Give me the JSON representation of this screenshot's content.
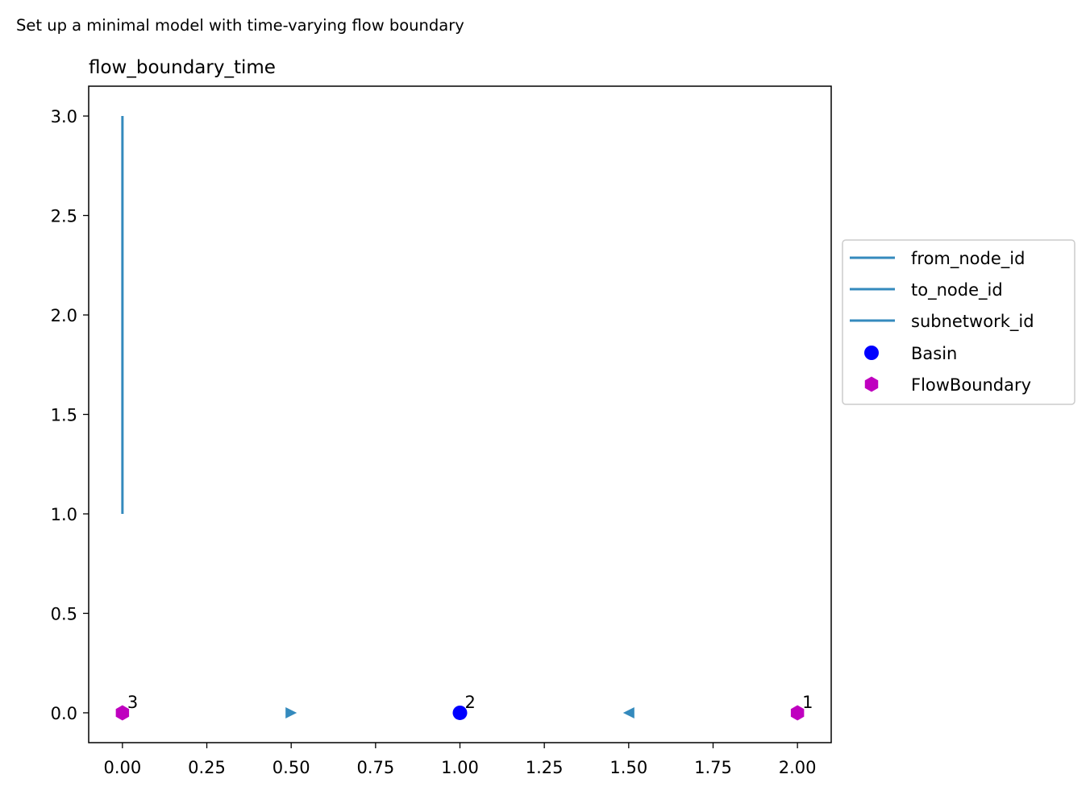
{
  "figure": {
    "suptitle": "Set up a minimal model with time-varying flow boundary"
  },
  "chart_data": {
    "type": "scatter",
    "title": "flow_boundary_time",
    "xlabel": "",
    "ylabel": "",
    "xlim": [
      -0.1,
      2.1
    ],
    "ylim": [
      -0.15,
      3.15
    ],
    "xticks": [
      "0.00",
      "0.25",
      "0.50",
      "0.75",
      "1.00",
      "1.25",
      "1.50",
      "1.75",
      "2.00"
    ],
    "yticks": [
      "0.0",
      "0.5",
      "1.0",
      "1.5",
      "2.0",
      "2.5",
      "3.0"
    ],
    "grid": false,
    "legend_position": "right (outside plot)",
    "lines": [
      {
        "name": "from_node_id",
        "color": "#348ABD",
        "x": [
          0,
          0
        ],
        "y": [
          1,
          3
        ]
      },
      {
        "name": "to_node_id",
        "color": "#348ABD",
        "x": [],
        "y": []
      },
      {
        "name": "subnetwork_id",
        "color": "#348ABD",
        "x": [],
        "y": []
      }
    ],
    "series": [
      {
        "name": "Basin",
        "marker": "circle",
        "color": "#0000ff",
        "points": [
          {
            "x": 1,
            "y": 0,
            "label": "2"
          }
        ]
      },
      {
        "name": "FlowBoundary",
        "marker": "hexagon",
        "color": "#bf00bf",
        "points": [
          {
            "x": 0,
            "y": 0,
            "label": "3"
          },
          {
            "x": 2,
            "y": 0,
            "label": "1"
          }
        ]
      }
    ],
    "edge_arrows": [
      {
        "x": 0.5,
        "y": 0,
        "direction": "right",
        "color": "#348ABD"
      },
      {
        "x": 1.5,
        "y": 0,
        "direction": "left",
        "color": "#348ABD"
      }
    ],
    "legend": [
      "from_node_id",
      "to_node_id",
      "subnetwork_id",
      "Basin",
      "FlowBoundary"
    ]
  }
}
